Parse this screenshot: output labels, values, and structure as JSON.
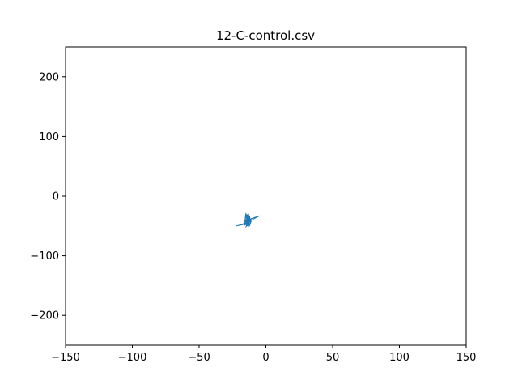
{
  "chart_data": {
    "type": "line",
    "title": "12-C-control.csv",
    "xlabel": "",
    "ylabel": "",
    "xlim": [
      -150,
      150
    ],
    "ylim": [
      -250,
      250
    ],
    "x_ticks": [
      -150,
      -100,
      -50,
      0,
      50,
      100,
      150
    ],
    "x_tick_labels": [
      "−150",
      "−100",
      "−50",
      "0",
      "50",
      "100",
      "150"
    ],
    "y_ticks": [
      -200,
      -100,
      0,
      100,
      200
    ],
    "y_tick_labels": [
      "−200",
      "−100",
      "0",
      "100",
      "200"
    ],
    "grid": false,
    "legend": "none",
    "series_color": "#1f77b4",
    "series": [
      {
        "x": [
          -14,
          -12,
          -15,
          -13,
          -16,
          -11,
          -14,
          -13,
          -15,
          -12,
          -14,
          -16,
          -13,
          -12,
          -15,
          -14,
          -13,
          -11,
          -14,
          -15,
          -12,
          -13,
          -14,
          -16,
          -13,
          -12,
          -15,
          -14,
          -12,
          -13,
          -14,
          -15,
          -13,
          -12,
          -14,
          -13,
          -15,
          -16,
          -13,
          -12,
          -14,
          -13,
          -15,
          -14,
          -12,
          -14,
          -13,
          -15,
          -12,
          -13,
          -14,
          -16,
          -15,
          -13,
          -12,
          -14,
          -13,
          -15,
          -14,
          -12,
          -11,
          -13,
          -14,
          -15,
          -13,
          -14,
          -12,
          -15,
          -14,
          -13,
          -5,
          -10,
          -13,
          -14,
          -19,
          -22,
          -16,
          -14,
          -13,
          -12,
          -14,
          -13,
          -15,
          -14,
          -12,
          -13,
          -15,
          -14,
          -13,
          -12
        ],
        "y": [
          -44,
          -42,
          -46,
          -40,
          -48,
          -38,
          -45,
          -43,
          -47,
          -36,
          -44,
          -49,
          -34,
          -41,
          -46,
          -31,
          -43,
          -38,
          -50,
          -45,
          -42,
          -30,
          -47,
          -44,
          -36,
          -49,
          -41,
          -46,
          -33,
          -48,
          -44,
          -40,
          -51,
          -37,
          -45,
          -43,
          -29,
          -47,
          -42,
          -50,
          -38,
          -44,
          -46,
          -35,
          -48,
          -43,
          -41,
          -52,
          -39,
          -45,
          -42,
          -47,
          -34,
          -44,
          -49,
          -40,
          -46,
          -43,
          -37,
          -48,
          -42,
          -45,
          -44,
          -41,
          -47,
          -43,
          -46,
          -40,
          -45,
          -43,
          -33,
          -37,
          -39,
          -44,
          -48,
          -50,
          -47,
          -45,
          -44,
          -43,
          -46,
          -42,
          -48,
          -44,
          -41,
          -45,
          -47,
          -43,
          -44,
          -42
        ]
      }
    ]
  }
}
